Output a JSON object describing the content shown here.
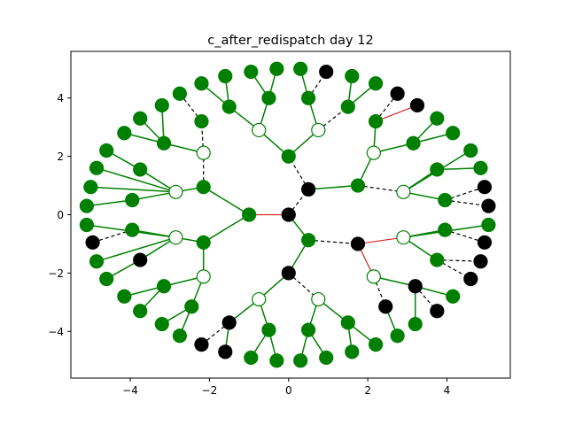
{
  "figure": {
    "title": "c_after_redispatch day 12"
  },
  "chart_data": {
    "type": "network",
    "title": "c_after_redispatch day 12",
    "xlim": [
      -5.5,
      5.6
    ],
    "ylim": [
      -5.6,
      5.6
    ],
    "x_ticks": [
      -4,
      -2,
      0,
      2,
      4
    ],
    "y_ticks": [
      -4,
      -2,
      0,
      2,
      4
    ],
    "x_tick_labels": [
      "−4",
      "−2",
      "0",
      "2",
      "4"
    ],
    "y_tick_labels": [
      "−4",
      "−2",
      "0",
      "2",
      "4"
    ],
    "colors": {
      "green": "#008000",
      "black": "#000000",
      "open": "#ffffff",
      "edge_green": "#008000",
      "edge_red": "#d62728",
      "edge_black": "#000000"
    },
    "nodes": [
      {
        "id": "c0",
        "x": 0,
        "y": 0,
        "style": "black"
      },
      {
        "id": "A",
        "x": -1.0,
        "y": 0,
        "style": "green"
      },
      {
        "id": "B",
        "x": 0.5,
        "y": 0.87,
        "style": "black"
      },
      {
        "id": "C",
        "x": 0.5,
        "y": -0.87,
        "style": "green"
      },
      {
        "id": "A1",
        "x": -2.15,
        "y": 0.95,
        "style": "green"
      },
      {
        "id": "A2",
        "x": -2.15,
        "y": -0.95,
        "style": "green"
      },
      {
        "id": "B1",
        "x": 0,
        "y": 2.0,
        "style": "green"
      },
      {
        "id": "B2",
        "x": 1.75,
        "y": 1.0,
        "style": "green"
      },
      {
        "id": "C1",
        "x": 1.75,
        "y": -1.0,
        "style": "black"
      },
      {
        "id": "C2",
        "x": 0,
        "y": -2.0,
        "style": "black"
      },
      {
        "id": "A1a",
        "x": -2.85,
        "y": 0.78,
        "style": "open"
      },
      {
        "id": "A1b",
        "x": -2.15,
        "y": 2.12,
        "style": "open"
      },
      {
        "id": "A2a",
        "x": -2.85,
        "y": -0.78,
        "style": "open"
      },
      {
        "id": "A2b",
        "x": -2.15,
        "y": -2.12,
        "style": "open"
      },
      {
        "id": "B1a",
        "x": -0.75,
        "y": 2.9,
        "style": "open"
      },
      {
        "id": "B1b",
        "x": 0.75,
        "y": 2.9,
        "style": "open"
      },
      {
        "id": "B2a",
        "x": 2.15,
        "y": 2.12,
        "style": "open"
      },
      {
        "id": "B2b",
        "x": 2.9,
        "y": 0.78,
        "style": "open"
      },
      {
        "id": "C1a",
        "x": 2.9,
        "y": -0.78,
        "style": "open"
      },
      {
        "id": "C1b",
        "x": 2.15,
        "y": -2.12,
        "style": "open"
      },
      {
        "id": "C2a",
        "x": -0.75,
        "y": -2.9,
        "style": "open"
      },
      {
        "id": "C2b",
        "x": 0.75,
        "y": -2.9,
        "style": "open"
      },
      {
        "id": "L1",
        "x": -4.6,
        "y": 2.2,
        "style": "green"
      },
      {
        "id": "L2",
        "x": -4.85,
        "y": 1.6,
        "style": "green"
      },
      {
        "id": "L3",
        "x": -3.75,
        "y": 1.55,
        "style": "green"
      },
      {
        "id": "L4",
        "x": -5.0,
        "y": 0.95,
        "style": "green"
      },
      {
        "id": "L5",
        "x": -5.1,
        "y": 0.3,
        "style": "green"
      },
      {
        "id": "L6",
        "x": -3.95,
        "y": 0.5,
        "style": "green"
      },
      {
        "id": "L7",
        "x": -5.1,
        "y": -0.35,
        "style": "green"
      },
      {
        "id": "L8",
        "x": -4.95,
        "y": -0.95,
        "style": "black"
      },
      {
        "id": "L9",
        "x": -3.95,
        "y": -0.52,
        "style": "green"
      },
      {
        "id": "L10",
        "x": -4.85,
        "y": -1.6,
        "style": "green"
      },
      {
        "id": "L11",
        "x": -3.75,
        "y": -1.55,
        "style": "black"
      },
      {
        "id": "L12",
        "x": -4.6,
        "y": -2.2,
        "style": "green"
      },
      {
        "id": "UL1",
        "x": -4.15,
        "y": 2.8,
        "style": "green"
      },
      {
        "id": "UL2",
        "x": -3.75,
        "y": 3.3,
        "style": "green"
      },
      {
        "id": "UL3",
        "x": -3.2,
        "y": 3.75,
        "style": "green"
      },
      {
        "id": "UL4",
        "x": -3.15,
        "y": 2.45,
        "style": "green"
      },
      {
        "id": "UL5",
        "x": -2.75,
        "y": 4.15,
        "style": "green"
      },
      {
        "id": "UL6",
        "x": -2.2,
        "y": 3.2,
        "style": "green"
      },
      {
        "id": "UL7",
        "x": -2.2,
        "y": 4.5,
        "style": "green"
      },
      {
        "id": "UL8",
        "x": -1.6,
        "y": 4.75,
        "style": "green"
      },
      {
        "id": "UL9",
        "x": -1.5,
        "y": 3.7,
        "style": "green"
      },
      {
        "id": "UL10",
        "x": -0.95,
        "y": 4.9,
        "style": "green"
      },
      {
        "id": "UL11",
        "x": -0.5,
        "y": 4.0,
        "style": "green"
      },
      {
        "id": "UL12",
        "x": -0.3,
        "y": 5.0,
        "style": "green"
      },
      {
        "id": "UR1",
        "x": 0.3,
        "y": 5.0,
        "style": "green"
      },
      {
        "id": "UR2",
        "x": 0.95,
        "y": 4.9,
        "style": "black"
      },
      {
        "id": "UR3",
        "x": 0.5,
        "y": 4.0,
        "style": "green"
      },
      {
        "id": "UR4",
        "x": 1.6,
        "y": 4.75,
        "style": "green"
      },
      {
        "id": "UR5",
        "x": 1.5,
        "y": 3.7,
        "style": "green"
      },
      {
        "id": "UR6",
        "x": 2.2,
        "y": 4.5,
        "style": "green"
      },
      {
        "id": "UR7",
        "x": 2.75,
        "y": 4.15,
        "style": "black"
      },
      {
        "id": "UR8",
        "x": 2.2,
        "y": 3.2,
        "style": "green"
      },
      {
        "id": "UR9",
        "x": 3.25,
        "y": 3.75,
        "style": "black"
      },
      {
        "id": "UR10",
        "x": 3.75,
        "y": 3.3,
        "style": "green"
      },
      {
        "id": "UR11",
        "x": 3.15,
        "y": 2.45,
        "style": "green"
      },
      {
        "id": "UR12",
        "x": 4.15,
        "y": 2.8,
        "style": "green"
      },
      {
        "id": "R1",
        "x": 4.6,
        "y": 2.2,
        "style": "green"
      },
      {
        "id": "R2",
        "x": 4.85,
        "y": 1.6,
        "style": "green"
      },
      {
        "id": "R3",
        "x": 3.75,
        "y": 1.55,
        "style": "green"
      },
      {
        "id": "R4",
        "x": 4.95,
        "y": 0.95,
        "style": "black"
      },
      {
        "id": "R5",
        "x": 5.05,
        "y": 0.3,
        "style": "black"
      },
      {
        "id": "R6",
        "x": 3.95,
        "y": 0.5,
        "style": "green"
      },
      {
        "id": "R7",
        "x": 5.05,
        "y": -0.35,
        "style": "green"
      },
      {
        "id": "R8",
        "x": 4.95,
        "y": -0.95,
        "style": "black"
      },
      {
        "id": "R9",
        "x": 3.95,
        "y": -0.52,
        "style": "green"
      },
      {
        "id": "R10",
        "x": 4.85,
        "y": -1.6,
        "style": "black"
      },
      {
        "id": "R11",
        "x": 3.75,
        "y": -1.55,
        "style": "green"
      },
      {
        "id": "R12",
        "x": 4.6,
        "y": -2.2,
        "style": "black"
      },
      {
        "id": "LR1",
        "x": 4.15,
        "y": -2.8,
        "style": "green"
      },
      {
        "id": "LR2",
        "x": 3.75,
        "y": -3.3,
        "style": "black"
      },
      {
        "id": "LR3",
        "x": 3.2,
        "y": -3.75,
        "style": "green"
      },
      {
        "id": "LR4",
        "x": 3.2,
        "y": -2.45,
        "style": "black"
      },
      {
        "id": "LR5",
        "x": 2.75,
        "y": -4.15,
        "style": "green"
      },
      {
        "id": "LR6",
        "x": 2.45,
        "y": -3.15,
        "style": "black"
      },
      {
        "id": "LR7",
        "x": 2.2,
        "y": -4.45,
        "style": "green"
      },
      {
        "id": "LR8",
        "x": 1.6,
        "y": -4.7,
        "style": "green"
      },
      {
        "id": "LR9",
        "x": 1.5,
        "y": -3.7,
        "style": "green"
      },
      {
        "id": "LR10",
        "x": 0.95,
        "y": -4.9,
        "style": "green"
      },
      {
        "id": "LR11",
        "x": 0.5,
        "y": -3.95,
        "style": "green"
      },
      {
        "id": "LR12",
        "x": 0.3,
        "y": -5.0,
        "style": "green"
      },
      {
        "id": "LL1",
        "x": -0.3,
        "y": -5.0,
        "style": "green"
      },
      {
        "id": "LL2",
        "x": -0.95,
        "y": -4.9,
        "style": "green"
      },
      {
        "id": "LL3",
        "x": -0.5,
        "y": -3.95,
        "style": "green"
      },
      {
        "id": "LL4",
        "x": -1.6,
        "y": -4.7,
        "style": "black"
      },
      {
        "id": "LL5",
        "x": -1.5,
        "y": -3.7,
        "style": "black"
      },
      {
        "id": "LL6",
        "x": -2.2,
        "y": -4.45,
        "style": "black"
      },
      {
        "id": "LL7",
        "x": -2.75,
        "y": -4.15,
        "style": "green"
      },
      {
        "id": "LL8",
        "x": -2.45,
        "y": -3.15,
        "style": "green"
      },
      {
        "id": "LL9",
        "x": -3.2,
        "y": -3.75,
        "style": "green"
      },
      {
        "id": "LL10",
        "x": -3.75,
        "y": -3.3,
        "style": "green"
      },
      {
        "id": "LL11",
        "x": -3.15,
        "y": -2.45,
        "style": "green"
      },
      {
        "id": "LL12",
        "x": -4.15,
        "y": -2.8,
        "style": "green"
      }
    ],
    "edges": [
      {
        "from": "c0",
        "to": "A",
        "style": "red"
      },
      {
        "from": "c0",
        "to": "B",
        "style": "dashed"
      },
      {
        "from": "c0",
        "to": "C",
        "style": "green"
      },
      {
        "from": "A",
        "to": "A1",
        "style": "green"
      },
      {
        "from": "A",
        "to": "A2",
        "style": "green"
      },
      {
        "from": "B",
        "to": "B1",
        "style": "dashed"
      },
      {
        "from": "B",
        "to": "B2",
        "style": "green"
      },
      {
        "from": "C",
        "to": "C1",
        "style": "dashed"
      },
      {
        "from": "C",
        "to": "C2",
        "style": "green"
      },
      {
        "from": "A1",
        "to": "A1a",
        "style": "green"
      },
      {
        "from": "A1",
        "to": "A1b",
        "style": "dashed"
      },
      {
        "from": "A2",
        "to": "A2a",
        "style": "green"
      },
      {
        "from": "A2",
        "to": "A2b",
        "style": "green"
      },
      {
        "from": "B1",
        "to": "B1a",
        "style": "green"
      },
      {
        "from": "B1",
        "to": "B1b",
        "style": "green"
      },
      {
        "from": "B2",
        "to": "B2a",
        "style": "green"
      },
      {
        "from": "B2",
        "to": "B2b",
        "style": "dashed"
      },
      {
        "from": "C1",
        "to": "C1a",
        "style": "red"
      },
      {
        "from": "C1",
        "to": "C1b",
        "style": "red"
      },
      {
        "from": "C2",
        "to": "C2a",
        "style": "green"
      },
      {
        "from": "C2",
        "to": "C2b",
        "style": "dashed"
      },
      {
        "from": "A1a",
        "to": "L2",
        "style": "green"
      },
      {
        "from": "A1a",
        "to": "L3",
        "style": "green"
      },
      {
        "from": "A1a",
        "to": "L4",
        "style": "green"
      },
      {
        "from": "A1a",
        "to": "L6",
        "style": "green"
      },
      {
        "from": "L3",
        "to": "L1",
        "style": "green"
      },
      {
        "from": "L6",
        "to": "L5",
        "style": "green"
      },
      {
        "from": "A2a",
        "to": "L7",
        "style": "green"
      },
      {
        "from": "A2a",
        "to": "L9",
        "style": "green"
      },
      {
        "from": "A2a",
        "to": "L10",
        "style": "green"
      },
      {
        "from": "A2a",
        "to": "L11",
        "style": "green"
      },
      {
        "from": "L9",
        "to": "L8",
        "style": "dashed"
      },
      {
        "from": "L11",
        "to": "L12",
        "style": "green"
      },
      {
        "from": "A1b",
        "to": "UL4",
        "style": "green"
      },
      {
        "from": "A1b",
        "to": "UL6",
        "style": "dashed"
      },
      {
        "from": "UL4",
        "to": "UL1",
        "style": "green"
      },
      {
        "from": "UL4",
        "to": "UL2",
        "style": "green"
      },
      {
        "from": "UL4",
        "to": "UL3",
        "style": "green"
      },
      {
        "from": "UL6",
        "to": "UL5",
        "style": "dashed"
      },
      {
        "from": "B1a",
        "to": "UL9",
        "style": "green"
      },
      {
        "from": "B1a",
        "to": "UL11",
        "style": "green"
      },
      {
        "from": "UL9",
        "to": "UL7",
        "style": "green"
      },
      {
        "from": "UL9",
        "to": "UL8",
        "style": "green"
      },
      {
        "from": "UL11",
        "to": "UL10",
        "style": "green"
      },
      {
        "from": "UL11",
        "to": "UL12",
        "style": "green"
      },
      {
        "from": "B1b",
        "to": "UR3",
        "style": "green"
      },
      {
        "from": "B1b",
        "to": "UR5",
        "style": "dashed"
      },
      {
        "from": "UR3",
        "to": "UR1",
        "style": "green"
      },
      {
        "from": "UR3",
        "to": "UR2",
        "style": "dashed"
      },
      {
        "from": "UR5",
        "to": "UR4",
        "style": "green"
      },
      {
        "from": "UR5",
        "to": "UR6",
        "style": "green"
      },
      {
        "from": "B2a",
        "to": "UR8",
        "style": "green"
      },
      {
        "from": "B2a",
        "to": "UR11",
        "style": "green"
      },
      {
        "from": "UR8",
        "to": "UR7",
        "style": "dashed"
      },
      {
        "from": "UR8",
        "to": "UR9",
        "style": "red"
      },
      {
        "from": "UR11",
        "to": "UR10",
        "style": "green"
      },
      {
        "from": "UR11",
        "to": "UR12",
        "style": "green"
      },
      {
        "from": "B2b",
        "to": "R1",
        "style": "green"
      },
      {
        "from": "B2b",
        "to": "R3",
        "style": "green"
      },
      {
        "from": "B2b",
        "to": "R6",
        "style": "green"
      },
      {
        "from": "R3",
        "to": "R2",
        "style": "green"
      },
      {
        "from": "R6",
        "to": "R4",
        "style": "dashed"
      },
      {
        "from": "R6",
        "to": "R5",
        "style": "dashed"
      },
      {
        "from": "C1a",
        "to": "R7",
        "style": "green"
      },
      {
        "from": "C1a",
        "to": "R9",
        "style": "green"
      },
      {
        "from": "C1a",
        "to": "R11",
        "style": "green"
      },
      {
        "from": "R9",
        "to": "R8",
        "style": "dashed"
      },
      {
        "from": "R11",
        "to": "R10",
        "style": "dashed"
      },
      {
        "from": "R11",
        "to": "R12",
        "style": "dashed"
      },
      {
        "from": "C1b",
        "to": "LR4",
        "style": "green"
      },
      {
        "from": "C1b",
        "to": "LR6",
        "style": "dashed"
      },
      {
        "from": "LR4",
        "to": "LR1",
        "style": "green"
      },
      {
        "from": "LR4",
        "to": "LR2",
        "style": "dashed"
      },
      {
        "from": "LR4",
        "to": "LR3",
        "style": "green"
      },
      {
        "from": "LR6",
        "to": "LR5",
        "style": "green"
      },
      {
        "from": "C2b",
        "to": "LR9",
        "style": "green"
      },
      {
        "from": "C2b",
        "to": "LR11",
        "style": "green"
      },
      {
        "from": "LR9",
        "to": "LR7",
        "style": "green"
      },
      {
        "from": "LR9",
        "to": "LR8",
        "style": "green"
      },
      {
        "from": "LR11",
        "to": "LR10",
        "style": "green"
      },
      {
        "from": "LR11",
        "to": "LR12",
        "style": "green"
      },
      {
        "from": "C2a",
        "to": "LL3",
        "style": "green"
      },
      {
        "from": "C2a",
        "to": "LL5",
        "style": "green"
      },
      {
        "from": "LL3",
        "to": "LL1",
        "style": "green"
      },
      {
        "from": "LL3",
        "to": "LL2",
        "style": "green"
      },
      {
        "from": "LL5",
        "to": "LL4",
        "style": "green"
      },
      {
        "from": "LL5",
        "to": "LL6",
        "style": "dashed"
      },
      {
        "from": "A2b",
        "to": "LL8",
        "style": "green"
      },
      {
        "from": "A2b",
        "to": "LL11",
        "style": "green"
      },
      {
        "from": "LL8",
        "to": "LL7",
        "style": "green"
      },
      {
        "from": "LL8",
        "to": "LL9",
        "style": "green"
      },
      {
        "from": "LL11",
        "to": "LL10",
        "style": "green"
      },
      {
        "from": "LL11",
        "to": "LL12",
        "style": "green"
      }
    ]
  }
}
